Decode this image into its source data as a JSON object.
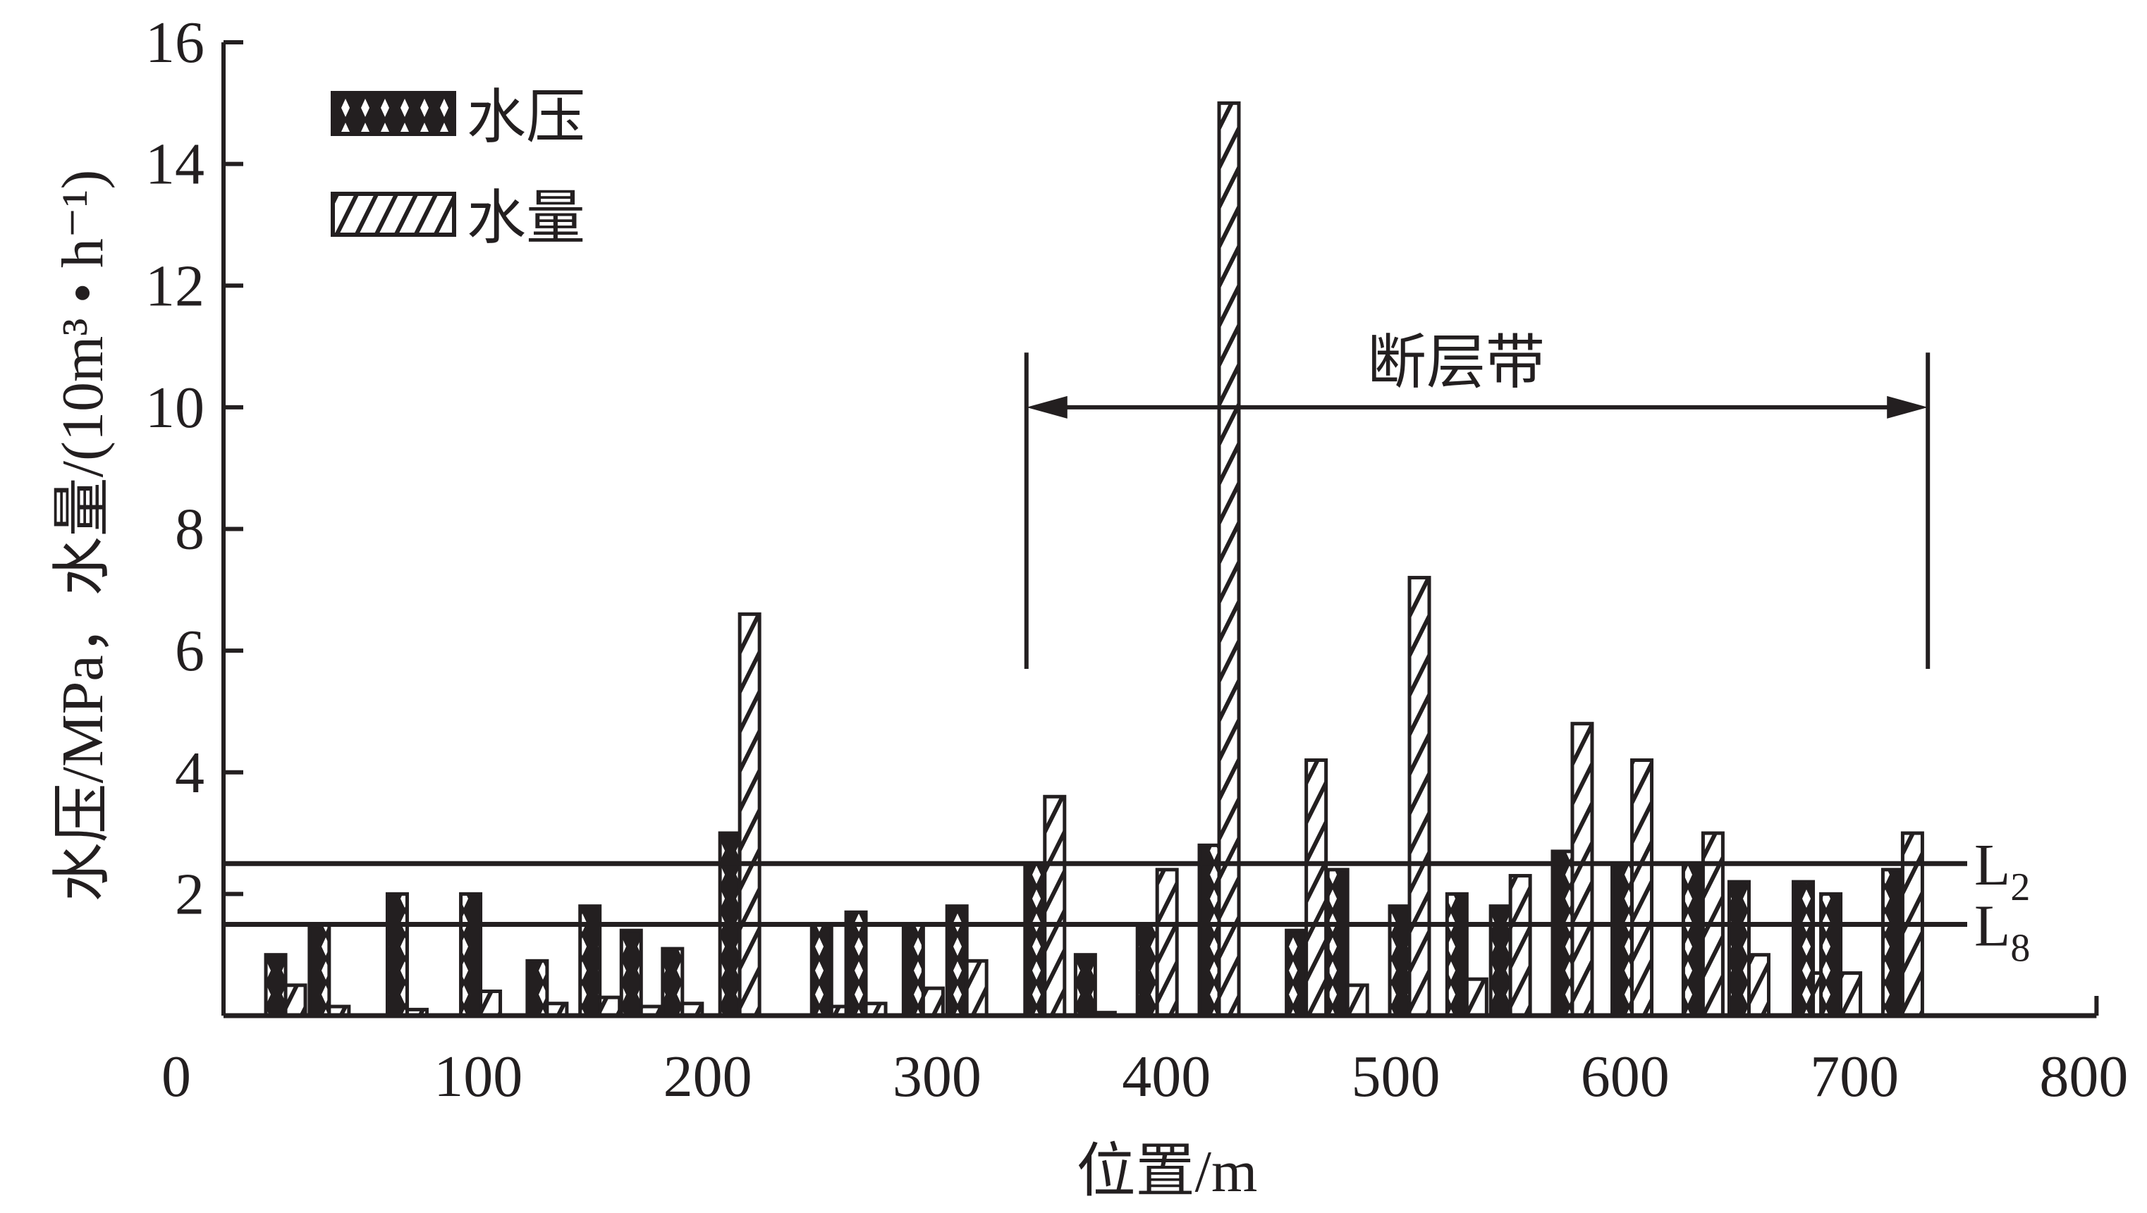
{
  "chart_data": {
    "type": "bar",
    "title": "",
    "xlabel": "位置/m",
    "ylabel": "水压/MPa，水量/(10m³ • h⁻¹)",
    "xlim": [
      0,
      800
    ],
    "ylim": [
      0,
      16
    ],
    "x_ticks": [
      "0",
      "100",
      "200",
      "300",
      "400",
      "500",
      "600",
      "700",
      "800"
    ],
    "y_ticks": [
      "2",
      "4",
      "6",
      "8",
      "10",
      "12",
      "14",
      "16"
    ],
    "legend": {
      "placement": "top-left",
      "entries": [
        "水压",
        "水量"
      ]
    },
    "x": [
      16,
      35,
      69,
      101,
      130,
      153,
      171,
      189,
      214,
      254,
      269,
      294,
      313,
      347,
      369,
      396,
      423,
      461,
      479,
      506,
      531,
      550,
      577,
      603,
      634,
      654,
      682,
      694,
      721
    ],
    "series": [
      {
        "name": "水压",
        "values": [
          1.0,
          1.5,
          2.0,
          2.0,
          0.9,
          1.8,
          1.4,
          1.1,
          3.0,
          1.5,
          1.7,
          1.5,
          1.8,
          2.5,
          1.0,
          1.5,
          2.8,
          1.4,
          2.4,
          1.8,
          2.0,
          1.8,
          2.7,
          2.5,
          2.5,
          2.2,
          2.2,
          2.0,
          2.4
        ]
      },
      {
        "name": "水量",
        "values": [
          0.5,
          0.15,
          0.1,
          0.4,
          0.2,
          0.3,
          0.15,
          0.2,
          6.6,
          0.15,
          0.2,
          0.45,
          0.9,
          3.6,
          0.05,
          2.4,
          15.0,
          4.2,
          0.5,
          7.2,
          0.6,
          2.3,
          4.8,
          4.2,
          3.0,
          1.0,
          0.7,
          0.7,
          3.0
        ]
      }
    ],
    "reference_lines": [
      {
        "name": "L",
        "sub": "2",
        "y": 2.5
      },
      {
        "name": "L",
        "sub": "8",
        "y": 1.5
      }
    ],
    "annotations": [
      {
        "text": "断层带",
        "x_range": [
          339,
          732
        ],
        "y": 10
      }
    ],
    "grid": false
  }
}
